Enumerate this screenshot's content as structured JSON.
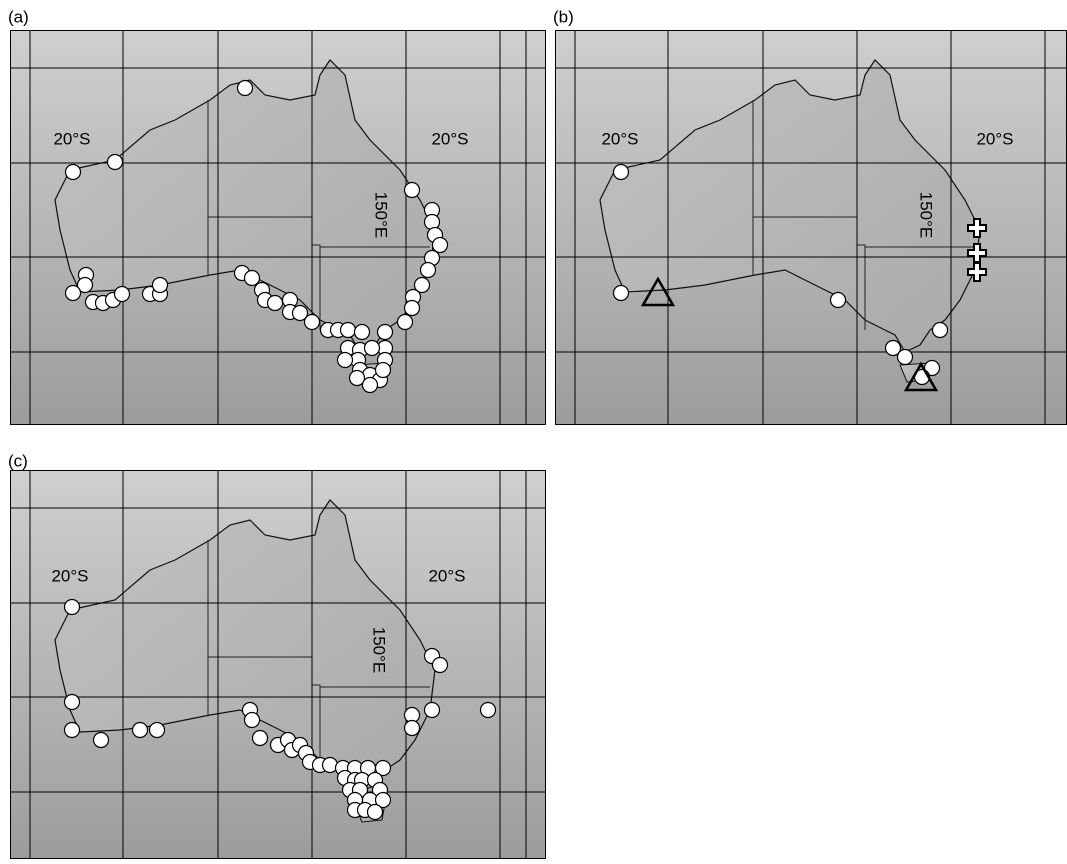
{
  "panels": [
    {
      "label": "(a)",
      "lat_labels": [
        "20°S",
        "20°S"
      ],
      "lon_label": "150°E"
    },
    {
      "label": "(b)",
      "lat_labels": [
        "20°S",
        "20°S"
      ],
      "lon_label": "150°E"
    },
    {
      "label": "(c)",
      "lat_labels": [
        "20°S",
        "20°S"
      ],
      "lon_label": "150°E"
    }
  ]
}
